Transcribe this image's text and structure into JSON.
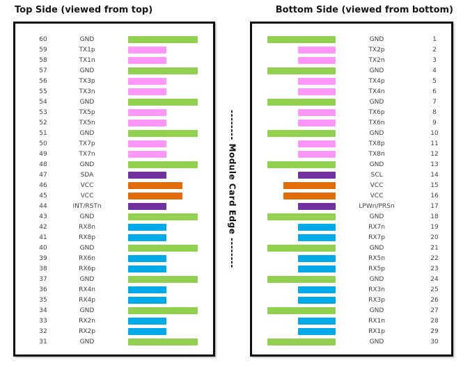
{
  "center_label": "-------- Module Card Edge --------",
  "colors": {
    "gnd": "#92D050",
    "tx": "#FF96FA",
    "rx": "#00A9E8",
    "vcc": "#E36C0A",
    "ctrl": "#7030A0"
  },
  "left_panel": {
    "title": "Top Side (viewed from top)",
    "rows": [
      {
        "pin": "60",
        "name": "GND",
        "type": "gnd"
      },
      {
        "pin": "59",
        "name": "TX1p",
        "type": "tx"
      },
      {
        "pin": "58",
        "name": "TX1n",
        "type": "tx"
      },
      {
        "pin": "57",
        "name": "GND",
        "type": "gnd"
      },
      {
        "pin": "56",
        "name": "TX3p",
        "type": "tx"
      },
      {
        "pin": "55",
        "name": "TX3n",
        "type": "tx"
      },
      {
        "pin": "54",
        "name": "GND",
        "type": "gnd"
      },
      {
        "pin": "53",
        "name": "TX5p",
        "type": "tx"
      },
      {
        "pin": "52",
        "name": "TX5n",
        "type": "tx"
      },
      {
        "pin": "51",
        "name": "GND",
        "type": "gnd"
      },
      {
        "pin": "50",
        "name": "TX7p",
        "type": "tx"
      },
      {
        "pin": "49",
        "name": "TX7n",
        "type": "tx"
      },
      {
        "pin": "48",
        "name": "GND",
        "type": "gnd"
      },
      {
        "pin": "47",
        "name": "SDA",
        "type": "ctrl"
      },
      {
        "pin": "46",
        "name": "VCC",
        "type": "vcc"
      },
      {
        "pin": "45",
        "name": "VCC",
        "type": "vcc"
      },
      {
        "pin": "44",
        "name": "INT/RSTn",
        "type": "ctrl"
      },
      {
        "pin": "43",
        "name": "GND",
        "type": "gnd"
      },
      {
        "pin": "42",
        "name": "RX8n",
        "type": "rx"
      },
      {
        "pin": "41",
        "name": "RX8p",
        "type": "rx"
      },
      {
        "pin": "40",
        "name": "GND",
        "type": "gnd"
      },
      {
        "pin": "39",
        "name": "RX6n",
        "type": "rx"
      },
      {
        "pin": "38",
        "name": "RX6p",
        "type": "rx"
      },
      {
        "pin": "37",
        "name": "GND",
        "type": "gnd"
      },
      {
        "pin": "36",
        "name": "RX4n",
        "type": "rx"
      },
      {
        "pin": "35",
        "name": "RX4p",
        "type": "rx"
      },
      {
        "pin": "34",
        "name": "GND",
        "type": "gnd"
      },
      {
        "pin": "33",
        "name": "RX2n",
        "type": "rx"
      },
      {
        "pin": "32",
        "name": "RX2p",
        "type": "rx"
      },
      {
        "pin": "31",
        "name": "GND",
        "type": "gnd"
      }
    ]
  },
  "right_panel": {
    "title": "Bottom Side (viewed from bottom)",
    "rows": [
      {
        "pin": "1",
        "name": "GND",
        "type": "gnd"
      },
      {
        "pin": "2",
        "name": "TX2p",
        "type": "tx"
      },
      {
        "pin": "3",
        "name": "TX2n",
        "type": "tx"
      },
      {
        "pin": "4",
        "name": "GND",
        "type": "gnd"
      },
      {
        "pin": "5",
        "name": "TX4p",
        "type": "tx"
      },
      {
        "pin": "6",
        "name": "TX4n",
        "type": "tx"
      },
      {
        "pin": "7",
        "name": "GND",
        "type": "gnd"
      },
      {
        "pin": "8",
        "name": "TX6p",
        "type": "tx"
      },
      {
        "pin": "9",
        "name": "TX6n",
        "type": "tx"
      },
      {
        "pin": "10",
        "name": "GND",
        "type": "gnd"
      },
      {
        "pin": "11",
        "name": "TX8p",
        "type": "tx"
      },
      {
        "pin": "12",
        "name": "TX8n",
        "type": "tx"
      },
      {
        "pin": "13",
        "name": "GND",
        "type": "gnd"
      },
      {
        "pin": "14",
        "name": "SCL",
        "type": "ctrl"
      },
      {
        "pin": "15",
        "name": "VCC",
        "type": "vcc"
      },
      {
        "pin": "16",
        "name": "VCC",
        "type": "vcc"
      },
      {
        "pin": "17",
        "name": "LPWn/PRSn",
        "type": "ctrl"
      },
      {
        "pin": "18",
        "name": "GND",
        "type": "gnd"
      },
      {
        "pin": "19",
        "name": "RX7n",
        "type": "rx"
      },
      {
        "pin": "20",
        "name": "RX7p",
        "type": "rx"
      },
      {
        "pin": "21",
        "name": "GND",
        "type": "gnd"
      },
      {
        "pin": "22",
        "name": "RX5n",
        "type": "rx"
      },
      {
        "pin": "23",
        "name": "RX5p",
        "type": "rx"
      },
      {
        "pin": "24",
        "name": "GND",
        "type": "gnd"
      },
      {
        "pin": "25",
        "name": "RX3n",
        "type": "rx"
      },
      {
        "pin": "26",
        "name": "RX3p",
        "type": "rx"
      },
      {
        "pin": "27",
        "name": "GND",
        "type": "gnd"
      },
      {
        "pin": "28",
        "name": "RX1n",
        "type": "rx"
      },
      {
        "pin": "29",
        "name": "RX1p",
        "type": "rx"
      },
      {
        "pin": "30",
        "name": "GND",
        "type": "gnd"
      }
    ]
  }
}
